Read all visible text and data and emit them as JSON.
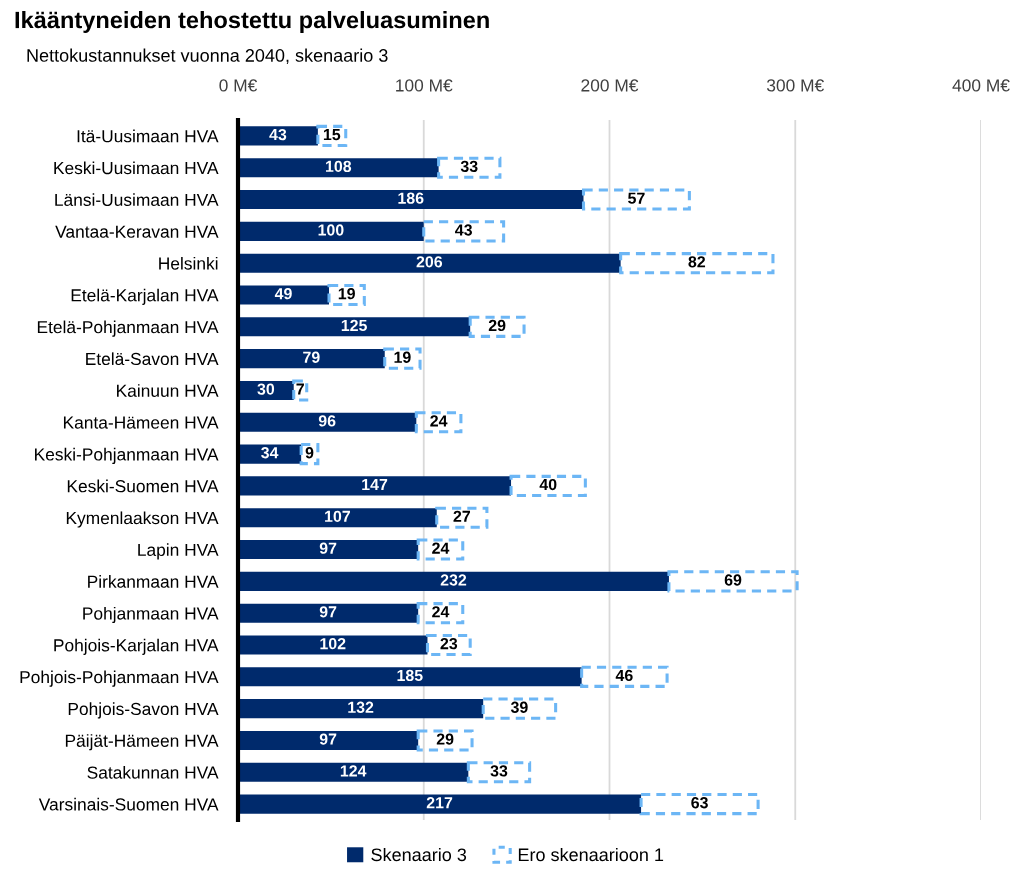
{
  "chart_data": {
    "type": "bar",
    "orientation": "horizontal",
    "stacked": true,
    "title": "Ikääntyneiden tehostettu palveluasuminen",
    "subtitle": "Nettokustannukset vuonna 2040, skenaario 3",
    "categories": [
      "Itä-Uusimaan HVA",
      "Keski-Uusimaan HVA",
      "Länsi-Uusimaan HVA",
      "Vantaa-Keravan HVA",
      "Helsinki",
      "Etelä-Karjalan HVA",
      "Etelä-Pohjanmaan HVA",
      "Etelä-Savon HVA",
      "Kainuun HVA",
      "Kanta-Hämeen HVA",
      "Keski-Pohjanmaan HVA",
      "Keski-Suomen HVA",
      "Kymenlaakson HVA",
      "Lapin HVA",
      "Pirkanmaan HVA",
      "Pohjanmaan HVA",
      "Pohjois-Karjalan HVA",
      "Pohjois-Pohjanmaan HVA",
      "Pohjois-Savon HVA",
      "Päijät-Hämeen HVA",
      "Satakunnan HVA",
      "Varsinais-Suomen HVA"
    ],
    "series": [
      {
        "name": "Skenaario 3",
        "color": "#002a6c",
        "line_style": "solid",
        "values": [
          43,
          108,
          186,
          100,
          206,
          49,
          125,
          79,
          30,
          96,
          34,
          147,
          107,
          97,
          232,
          97,
          102,
          185,
          132,
          97,
          124,
          217
        ]
      },
      {
        "name": "Ero skenaarioon 1",
        "color": "#6cb6f5",
        "line_style": "dashed",
        "values": [
          15,
          33,
          57,
          43,
          82,
          19,
          29,
          19,
          7,
          24,
          9,
          40,
          27,
          24,
          69,
          24,
          23,
          46,
          39,
          29,
          33,
          63
        ]
      }
    ],
    "xlim": [
      0,
      400
    ],
    "xticks": [
      {
        "value": 0,
        "label": "0 M€"
      },
      {
        "value": 100,
        "label": "100 M€"
      },
      {
        "value": 200,
        "label": "200 M€"
      },
      {
        "value": 300,
        "label": "300 M€"
      },
      {
        "value": 400,
        "label": "400 M€"
      }
    ],
    "grid": "x",
    "legend": "bottom",
    "data_labels": true
  }
}
